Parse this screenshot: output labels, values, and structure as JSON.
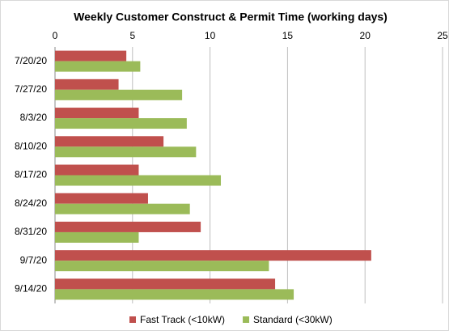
{
  "chart_data": {
    "type": "hbar",
    "title": "Weekly Customer Construct & Permit Time (working days)",
    "categories": [
      "7/20/20",
      "7/27/20",
      "8/3/20",
      "8/10/20",
      "8/17/20",
      "8/24/20",
      "8/31/20",
      "9/7/20",
      "9/14/20"
    ],
    "series": [
      {
        "name": "Fast Track (<10kW)",
        "color": "#c0504d",
        "values": [
          4.6,
          4.1,
          5.4,
          7.0,
          5.4,
          6.0,
          9.4,
          20.4,
          14.2
        ]
      },
      {
        "name": "Standard (<30kW)",
        "color": "#9bbb59",
        "values": [
          5.5,
          8.2,
          8.5,
          9.1,
          10.7,
          8.7,
          5.4,
          13.8,
          15.4
        ]
      }
    ],
    "xlim": [
      0,
      25
    ],
    "xticks": [
      0,
      5,
      10,
      15,
      20,
      25
    ],
    "grid": true,
    "legend": "bottom"
  }
}
